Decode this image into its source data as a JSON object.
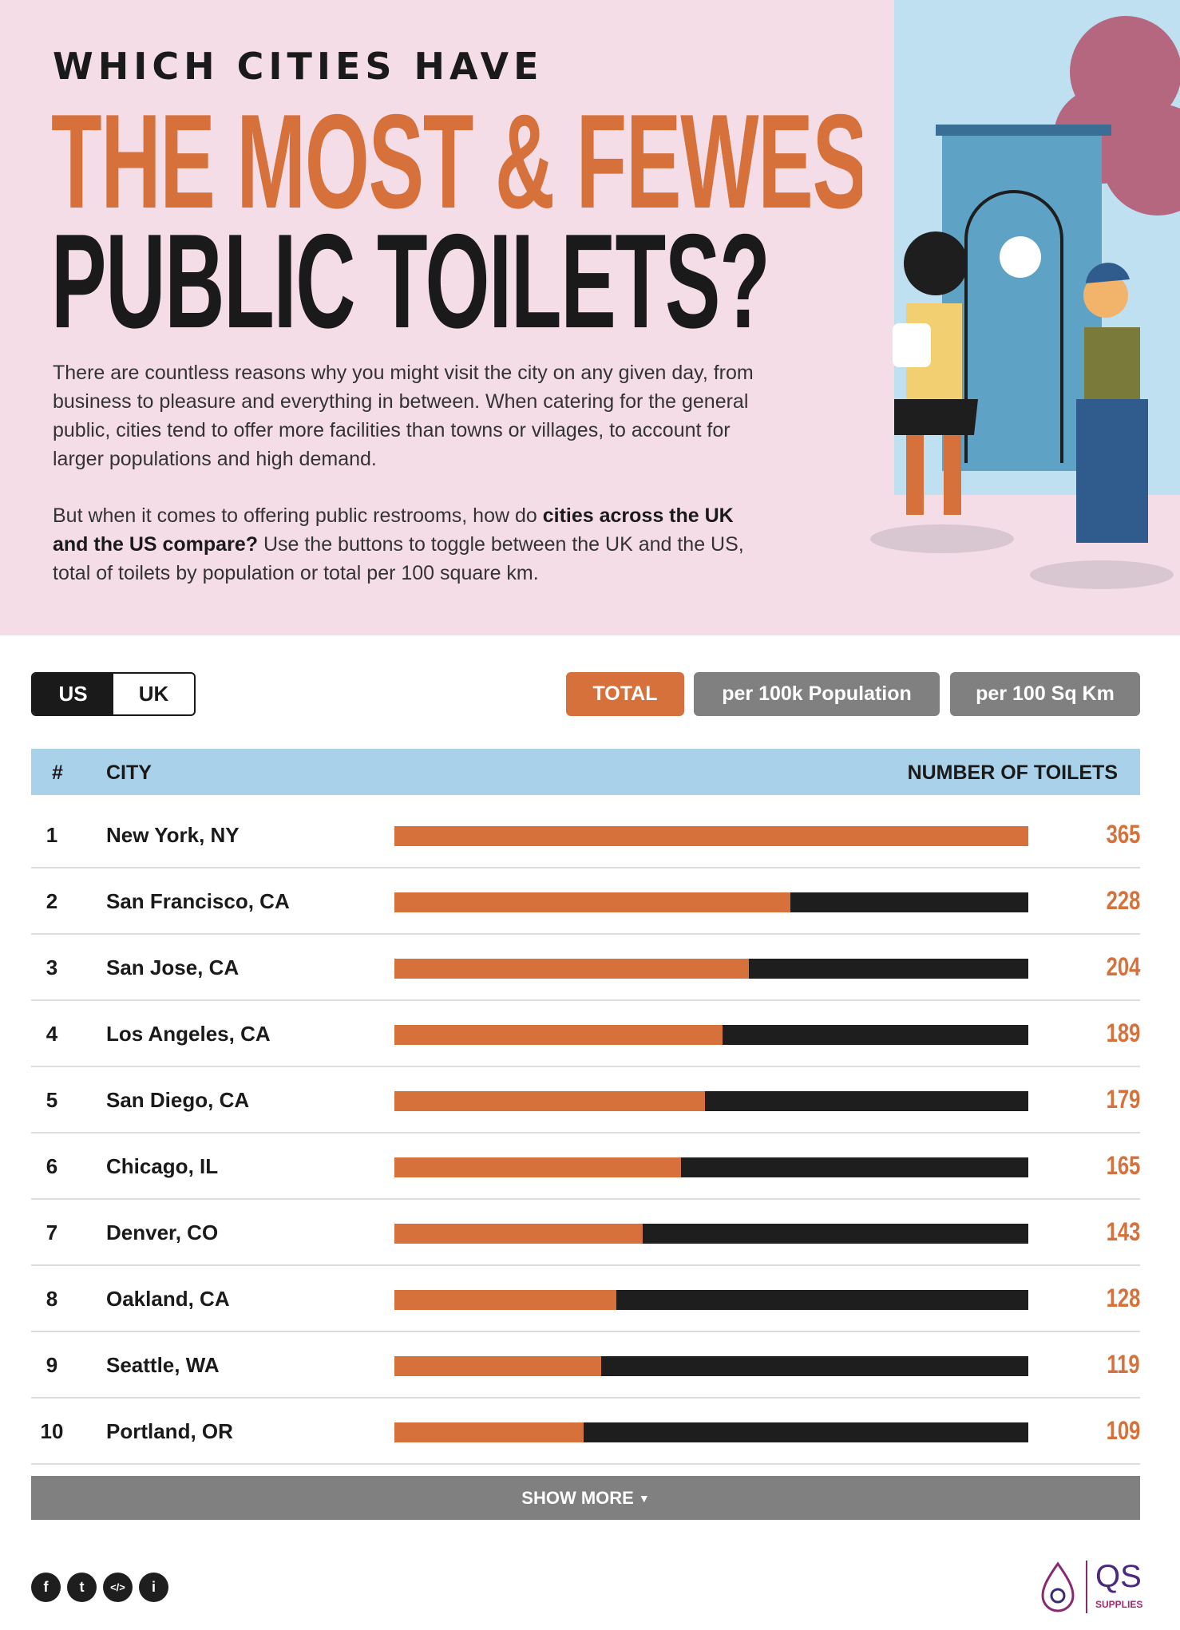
{
  "hero": {
    "kicker": "WHICH CITIES HAVE",
    "title_line1": "THE MOST & FEWEST",
    "title_line2": "PUBLIC TOILETS?",
    "para1": "There are countless reasons why you might visit the city on any given day, from business to pleasure and everything in between. When catering for the general public, cities tend to offer more facilities than towns or villages, to account for larger populations and high demand.",
    "para2_a": "But when it comes to offering public restrooms, how do ",
    "para2_b": "cities across the UK and the US compare?",
    "para2_c": " Use the buttons to toggle between the UK and the US, total of toilets by population or total per 100 square km."
  },
  "controls": {
    "country": [
      "US",
      "UK"
    ],
    "selected_country": "US",
    "metrics": [
      "TOTAL",
      "per 100k Population",
      "per 100 Sq Km"
    ],
    "selected_metric": "TOTAL"
  },
  "table": {
    "headers": {
      "rank": "#",
      "city": "CITY",
      "value": "NUMBER OF TOILETS"
    },
    "max": 365,
    "rows": [
      {
        "rank": "1",
        "city": "New York, NY",
        "value": 365
      },
      {
        "rank": "2",
        "city": "San Francisco, CA",
        "value": 228
      },
      {
        "rank": "3",
        "city": "San Jose, CA",
        "value": 204
      },
      {
        "rank": "4",
        "city": "Los Angeles, CA",
        "value": 189
      },
      {
        "rank": "5",
        "city": "San Diego, CA",
        "value": 179
      },
      {
        "rank": "6",
        "city": "Chicago, IL",
        "value": 165
      },
      {
        "rank": "7",
        "city": "Denver, CO",
        "value": 143
      },
      {
        "rank": "8",
        "city": "Oakland, CA",
        "value": 128
      },
      {
        "rank": "9",
        "city": "Seattle, WA",
        "value": 119
      },
      {
        "rank": "10",
        "city": "Portland, OR",
        "value": 109
      }
    ]
  },
  "show_more": "SHOW MORE",
  "footer": {
    "social": [
      "facebook",
      "twitter",
      "embed",
      "info"
    ],
    "logo_text": "QS",
    "logo_sub": "SUPPLIES"
  },
  "colors": {
    "accent": "#d6713b",
    "header_bg": "#a9d2ea",
    "hero_bg": "#f5dde8",
    "button_gray": "#808080"
  }
}
